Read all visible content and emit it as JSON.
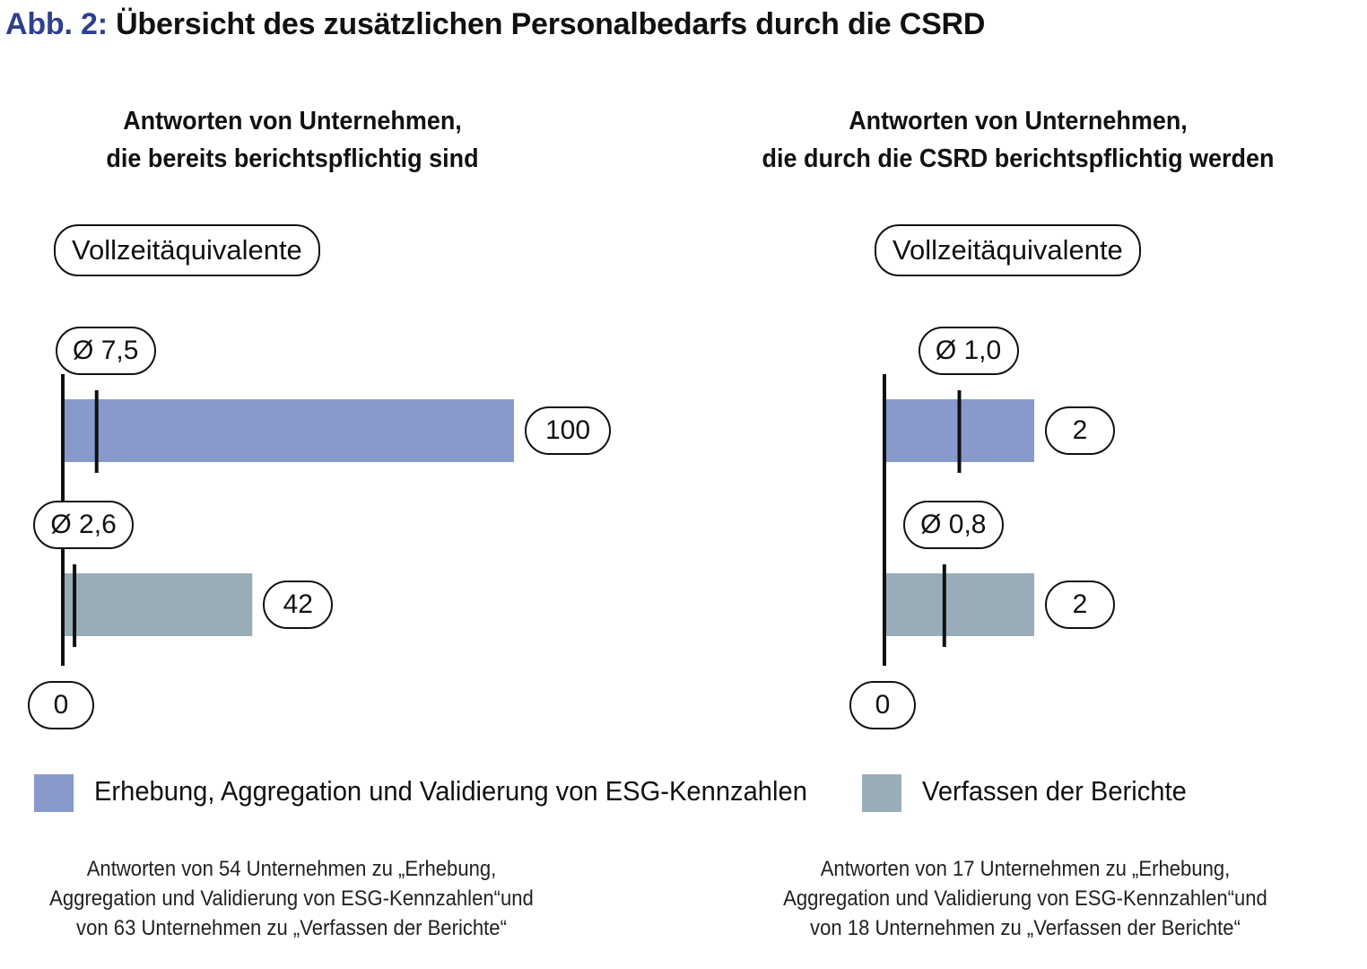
{
  "figure": {
    "title_prefix": "Abb. 2:",
    "title": "Übersicht des zusätzlichen Personalbedarfs durch die CSRD"
  },
  "colors": {
    "title_prefix": "#2f3f8f",
    "erhebung": "#8899cc",
    "verfassen": "#99adb9",
    "axis": "#111111"
  },
  "legend": [
    {
      "key": "erhebung",
      "label": "Erhebung, Aggregation und Validierung von ESG-Kennzahlen",
      "color": "#8899cc"
    },
    {
      "key": "verfassen",
      "label": "Verfassen der Berichte",
      "color": "#99adb9"
    }
  ],
  "panels": [
    {
      "title_line1": "Antworten von Unternehmen,",
      "title_line2": "die bereits berichtspflichtig sind",
      "unit_label": "Vollzeitäquivalente",
      "axis_min_label": "0",
      "note": [
        "Antworten von 54 Unternehmen zu „Erhebung,",
        "Aggregation und Validierung von ESG-Kennzahlen“und",
        "von 63 Unternehmen zu „Verfassen der Berichte“"
      ]
    },
    {
      "title_line1": "Antworten von Unternehmen,",
      "title_line2": "die durch die CSRD berichtspflichtig werden",
      "unit_label": "Vollzeitäquivalente",
      "axis_min_label": "0",
      "note": [
        "Antworten von 17 Unternehmen zu „Erhebung,",
        "Aggregation und Validierung von ESG-Kennzahlen“und",
        "von 18 Unternehmen zu „Verfassen der Berichte“"
      ]
    }
  ],
  "chart_data": [
    {
      "type": "bar",
      "orientation": "horizontal",
      "title": "Antworten von Unternehmen, die bereits berichtspflichtig sind",
      "xlabel": "Vollzeitäquivalente",
      "categories": [
        "Erhebung, Aggregation und Validierung von ESG-Kennzahlen",
        "Verfassen der Berichte"
      ],
      "values": [
        100,
        42
      ],
      "value_labels": [
        "100",
        "42"
      ],
      "means": [
        7.5,
        2.6
      ],
      "mean_labels": [
        "Ø 7,5",
        "Ø 2,6"
      ],
      "xlim": [
        0,
        100
      ]
    },
    {
      "type": "bar",
      "orientation": "horizontal",
      "title": "Antworten von Unternehmen, die durch die CSRD berichtspflichtig werden",
      "xlabel": "Vollzeitäquivalente",
      "categories": [
        "Erhebung, Aggregation und Validierung von ESG-Kennzahlen",
        "Verfassen der Berichte"
      ],
      "values": [
        2,
        2
      ],
      "value_labels": [
        "2",
        "2"
      ],
      "means": [
        1.0,
        0.8
      ],
      "mean_labels": [
        "Ø 1,0",
        "Ø 0,8"
      ],
      "xlim": [
        0,
        2
      ]
    }
  ]
}
